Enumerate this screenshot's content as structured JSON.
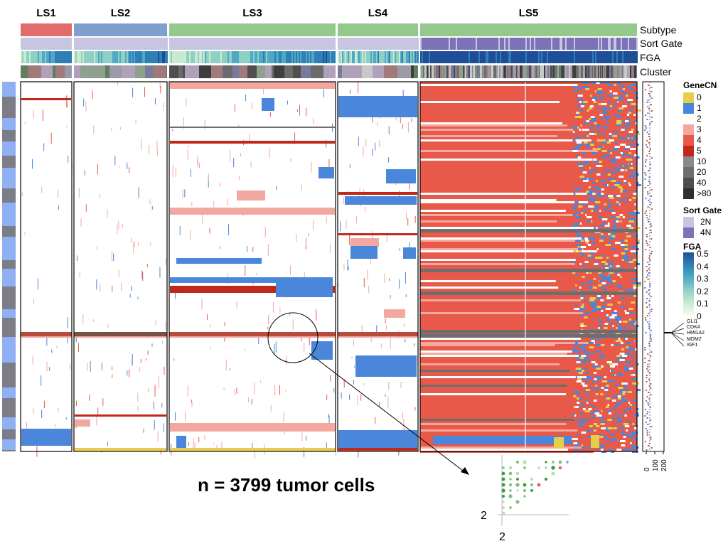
{
  "chart_data": {
    "type": "heatmap",
    "clusters": [
      {
        "name": "LS1",
        "subtype_color": "#e06c6c",
        "base_color": "#ffffff",
        "density": 0.04
      },
      {
        "name": "LS2",
        "subtype_color": "#7fa0cf",
        "base_color": "#ffffff",
        "density": 0.06
      },
      {
        "name": "LS3",
        "subtype_color": "#93c98a",
        "base_color": "#ffffff",
        "density": 0.05
      },
      {
        "name": "LS4",
        "subtype_color": "#93c98a",
        "base_color": "#ffffff",
        "density": 0.07
      },
      {
        "name": "LS5",
        "subtype_color": "#93c98a",
        "base_color": "#e8594a",
        "density": 0.55
      }
    ],
    "tracks": [
      "Subtype",
      "Sort Gate",
      "FGA",
      "Cluster"
    ],
    "legends": {
      "genecn": {
        "title": "GeneCN",
        "entries": [
          {
            "label": "0",
            "color": "#e8cd4a"
          },
          {
            "label": "1",
            "color": "#4a86d9"
          },
          {
            "label": "2",
            "color": "#ffffff"
          },
          {
            "label": "3",
            "color": "#f2a8a0"
          },
          {
            "label": "4",
            "color": "#e8594a"
          },
          {
            "label": "5",
            "color": "#c0281c"
          },
          {
            "label": "10",
            "color": "#8a8a8a"
          },
          {
            "label": "20",
            "color": "#6e6e6e"
          },
          {
            "label": "40",
            "color": "#4e4e4e"
          },
          {
            "label": ">80",
            "color": "#2e2e2e"
          }
        ]
      },
      "sortgate": {
        "title": "Sort Gate",
        "entries": [
          {
            "label": "2N",
            "color": "#c7c5e2"
          },
          {
            "label": "4N",
            "color": "#7b72b7"
          }
        ]
      },
      "fga": {
        "title": "FGA",
        "ticks": [
          "0.5",
          "0.4",
          "0.3",
          "0.2",
          "0.1",
          "0"
        ],
        "colors": [
          "#1f4e99",
          "#2f7fb5",
          "#4fa9c4",
          "#8fd0c6",
          "#c9ead0",
          "#f3fbf0"
        ]
      }
    },
    "genes": [
      "GLI1",
      "CDK4",
      "HMGA2",
      "MDM2",
      "IGF1"
    ],
    "side_axis_ticks": [
      0,
      100,
      200
    ],
    "inset_axis": {
      "x": "2",
      "y": "2"
    },
    "annotation": "n = 3799 tumor cells"
  }
}
